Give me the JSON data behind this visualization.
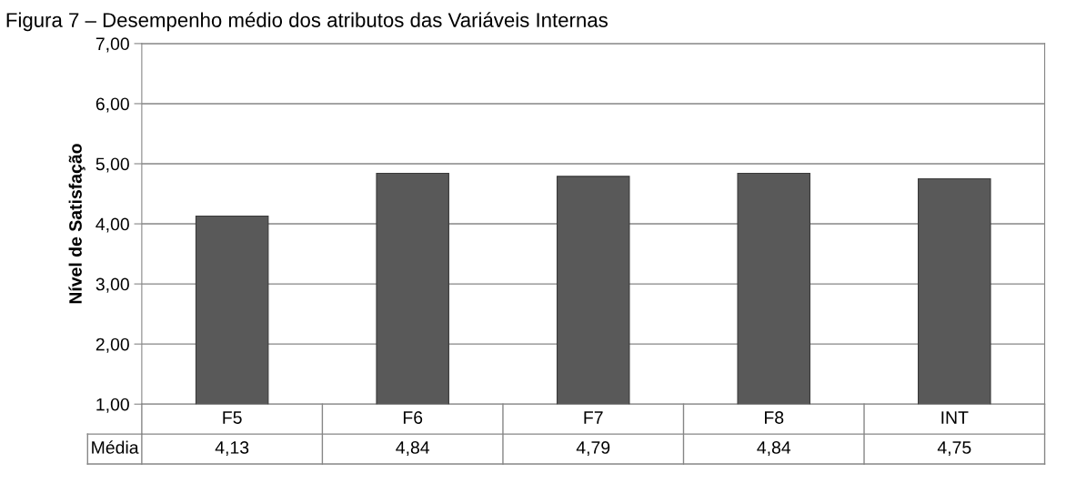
{
  "chart_data": {
    "type": "bar",
    "title": "Figura 7 – Desempenho médio dos atributos das Variáveis Internas",
    "ylabel": "Nível de Satisfação",
    "categories": [
      "F5",
      "F6",
      "F7",
      "F8",
      "INT"
    ],
    "series": [
      {
        "name": "Média",
        "color": "#595959",
        "values": [
          4.13,
          4.84,
          4.79,
          4.84,
          4.75
        ],
        "value_labels": [
          "4,13",
          "4,84",
          "4,79",
          "4,84",
          "4,75"
        ]
      }
    ],
    "ylim": [
      1,
      7
    ],
    "yticks": [
      {
        "value": 1,
        "label": "1,00"
      },
      {
        "value": 2,
        "label": "2,00"
      },
      {
        "value": 3,
        "label": "3,00"
      },
      {
        "value": 4,
        "label": "4,00"
      },
      {
        "value": 5,
        "label": "5,00"
      },
      {
        "value": 6,
        "label": "6,00"
      },
      {
        "value": 7,
        "label": "7,00"
      }
    ],
    "grid": "y"
  }
}
